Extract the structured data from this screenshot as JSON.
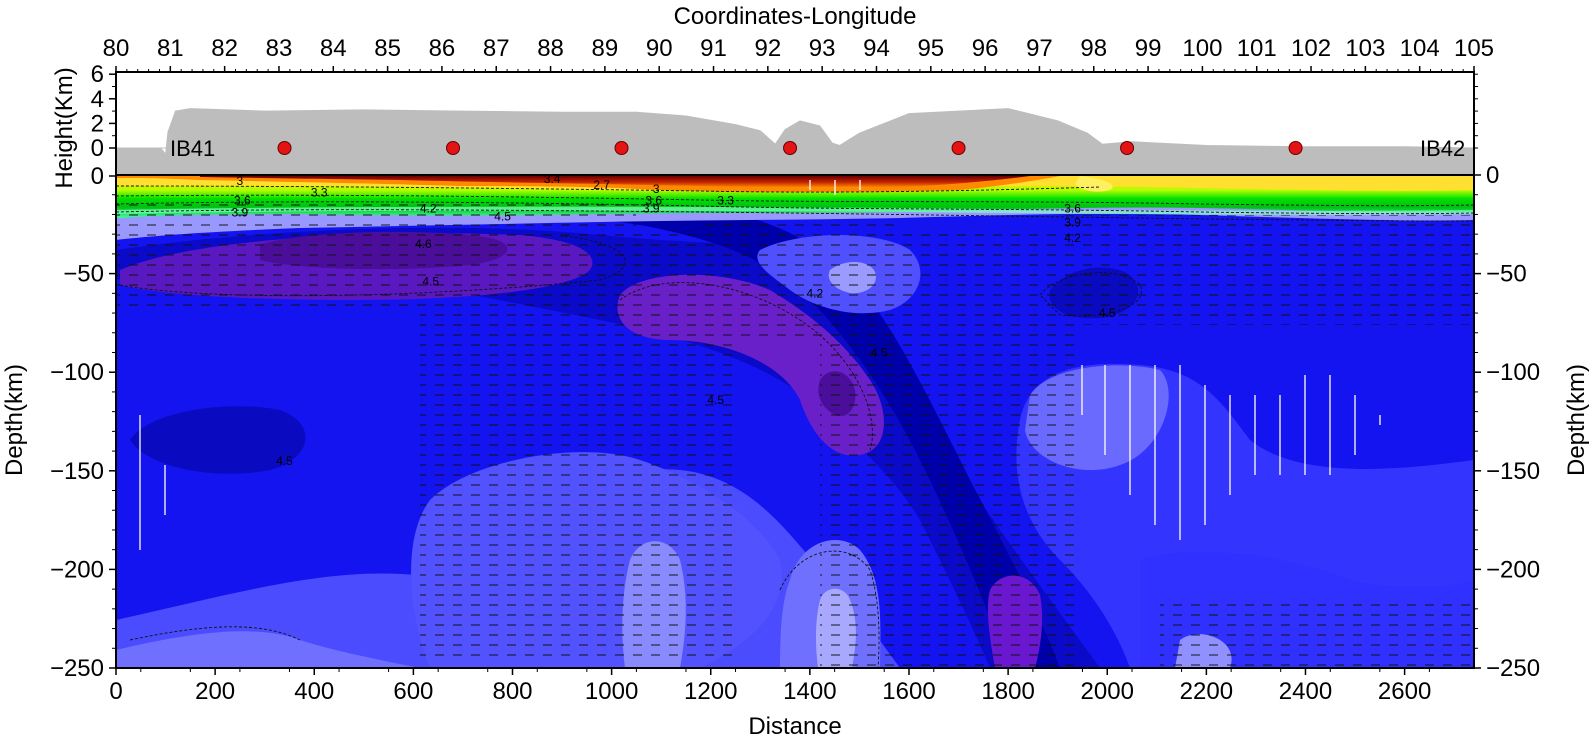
{
  "chart_data": {
    "type": "heatmap",
    "title": "",
    "top_axis": {
      "label": "Coordinates-Longitude",
      "min": 80,
      "max": 105,
      "ticks": [
        "80",
        "81",
        "82",
        "83",
        "84",
        "85",
        "86",
        "87",
        "88",
        "89",
        "90",
        "91",
        "92",
        "93",
        "94",
        "95",
        "96",
        "97",
        "98",
        "99",
        "100",
        "101",
        "102",
        "103",
        "104",
        "105"
      ]
    },
    "bottom_axis": {
      "label": "Distance",
      "min": 0,
      "max": 2740,
      "ticks": [
        "0",
        "200",
        "400",
        "600",
        "800",
        "1000",
        "1200",
        "1400",
        "1600",
        "1800",
        "2000",
        "2200",
        "2400",
        "2600"
      ]
    },
    "topo_axis": {
      "label": "Height(Km)",
      "min": -1,
      "max": 6,
      "ticks": [
        "6",
        "4",
        "2",
        "0",
        "0"
      ]
    },
    "left_axis": {
      "label": "Depth(km)",
      "min": -250,
      "max": 0,
      "ticks": [
        "−250",
        "−200",
        "−150",
        "−100",
        "−50"
      ]
    },
    "right_axis": {
      "label": "Depth(km)",
      "ticks": [
        "0",
        "−50",
        "−100",
        "−150",
        "−200",
        "−250"
      ]
    },
    "stations": {
      "start_label": "IB41",
      "end_label": "IB42",
      "distances": [
        340,
        680,
        1020,
        1360,
        1700,
        2040,
        2380
      ]
    },
    "topography": [
      [
        0,
        0
      ],
      [
        90,
        0
      ],
      [
        100,
        -0.5
      ],
      [
        105,
        1.3
      ],
      [
        120,
        3.0
      ],
      [
        150,
        3.2
      ],
      [
        300,
        3.0
      ],
      [
        500,
        3.1
      ],
      [
        700,
        3.0
      ],
      [
        900,
        2.9
      ],
      [
        1050,
        2.9
      ],
      [
        1150,
        2.6
      ],
      [
        1250,
        1.9
      ],
      [
        1300,
        1.4
      ],
      [
        1330,
        0.3
      ],
      [
        1350,
        1.5
      ],
      [
        1380,
        2.2
      ],
      [
        1420,
        1.8
      ],
      [
        1445,
        0.4
      ],
      [
        1460,
        0.2
      ],
      [
        1500,
        1.2
      ],
      [
        1600,
        2.8
      ],
      [
        1800,
        3.2
      ],
      [
        1900,
        2.2
      ],
      [
        1960,
        1.2
      ],
      [
        1990,
        0.3
      ],
      [
        2050,
        0.5
      ],
      [
        2200,
        0.2
      ],
      [
        2400,
        0.1
      ],
      [
        2600,
        0.1
      ],
      [
        2740,
        0
      ]
    ],
    "contour_labels": [
      {
        "text": "3",
        "x": 250,
        "y": -3
      },
      {
        "text": "3.3",
        "x": 410,
        "y": -9
      },
      {
        "text": "3.6",
        "x": 255,
        "y": -13
      },
      {
        "text": "3.9",
        "x": 250,
        "y": -19
      },
      {
        "text": "4.2",
        "x": 630,
        "y": -17
      },
      {
        "text": "4.5",
        "x": 780,
        "y": -21
      },
      {
        "text": "4.6",
        "x": 620,
        "y": -35
      },
      {
        "text": "4.5",
        "x": 635,
        "y": -54
      },
      {
        "text": "3.4",
        "x": 880,
        "y": -2
      },
      {
        "text": "2.7",
        "x": 980,
        "y": -5
      },
      {
        "text": "3",
        "x": 1090,
        "y": -7
      },
      {
        "text": "3.6",
        "x": 1085,
        "y": -13
      },
      {
        "text": "3.9",
        "x": 1080,
        "y": -17
      },
      {
        "text": "3.3",
        "x": 1230,
        "y": -13
      },
      {
        "text": "4.2",
        "x": 1410,
        "y": -60
      },
      {
        "text": "4.5",
        "x": 1540,
        "y": -90
      },
      {
        "text": "4.5",
        "x": 1210,
        "y": -114
      },
      {
        "text": "4.5",
        "x": 340,
        "y": -145
      },
      {
        "text": "3.6",
        "x": 1930,
        "y": -17
      },
      {
        "text": "3.9",
        "x": 1930,
        "y": -24
      },
      {
        "text": "4.2",
        "x": 1930,
        "y": -32
      },
      {
        "text": "4.5",
        "x": 2000,
        "y": -70
      }
    ],
    "colors": {
      "topo": "#bdbdbd",
      "station": "#e51414",
      "deep_blue": "#1010ee",
      "mid_blue": "#0000aa",
      "purple": "#5a16b8",
      "light_blue": "#5a5aff",
      "pale_blue": "#9a9aff",
      "green": "#00d600",
      "red": "#b02000"
    }
  }
}
